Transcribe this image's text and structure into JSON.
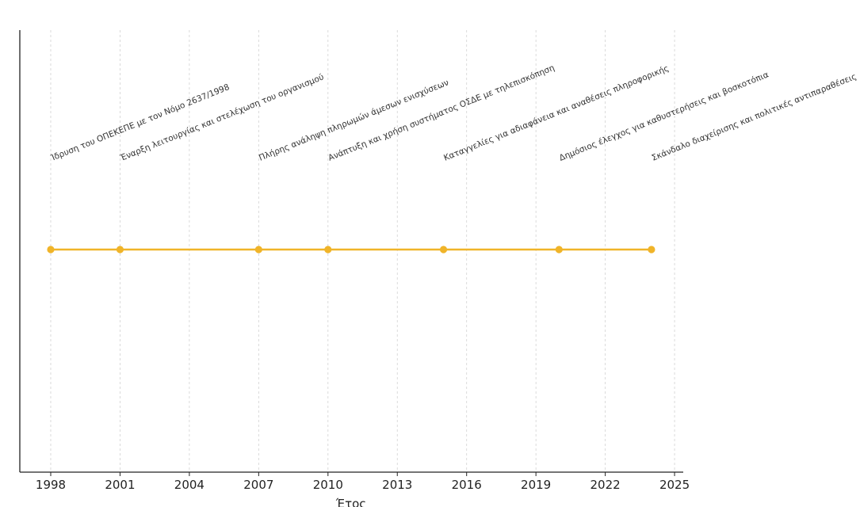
{
  "chart_data": {
    "type": "line",
    "title": "",
    "xlabel": "Έτος",
    "ylabel": "",
    "xlim": [
      1997,
      2025.5
    ],
    "xticks": [
      1998,
      2001,
      2004,
      2007,
      2010,
      2013,
      2016,
      2019,
      2022,
      2025
    ],
    "grid": "vertical dashed",
    "color": "#f0b429",
    "points": [
      {
        "x": 1998,
        "label": "Ίδρυση του ΟΠΕΚΕΠΕ με τον Νόμο 2637/1998"
      },
      {
        "x": 2001,
        "label": "Έναρξη λειτουργίας και στελέχωση του οργανισμού"
      },
      {
        "x": 2007,
        "label": "Πλήρης ανάληψη πληρωμών άμεσων ενισχύσεων"
      },
      {
        "x": 2010,
        "label": "Ανάπτυξη και χρήση συστήματος ΟΣΔΕ με τηλεπισκόπηση"
      },
      {
        "x": 2015,
        "label": "Καταγγελίες για αδιαφάνεια και αναθέσεις πληροφορικής"
      },
      {
        "x": 2020,
        "label": "Δημόσιος έλεγχος για καθυστερήσεις και βοσκοτόπια"
      },
      {
        "x": 2024,
        "label": "Σκάνδαλο διαχείρισης και πολιτικές αντιπαραθέσεις"
      }
    ]
  }
}
